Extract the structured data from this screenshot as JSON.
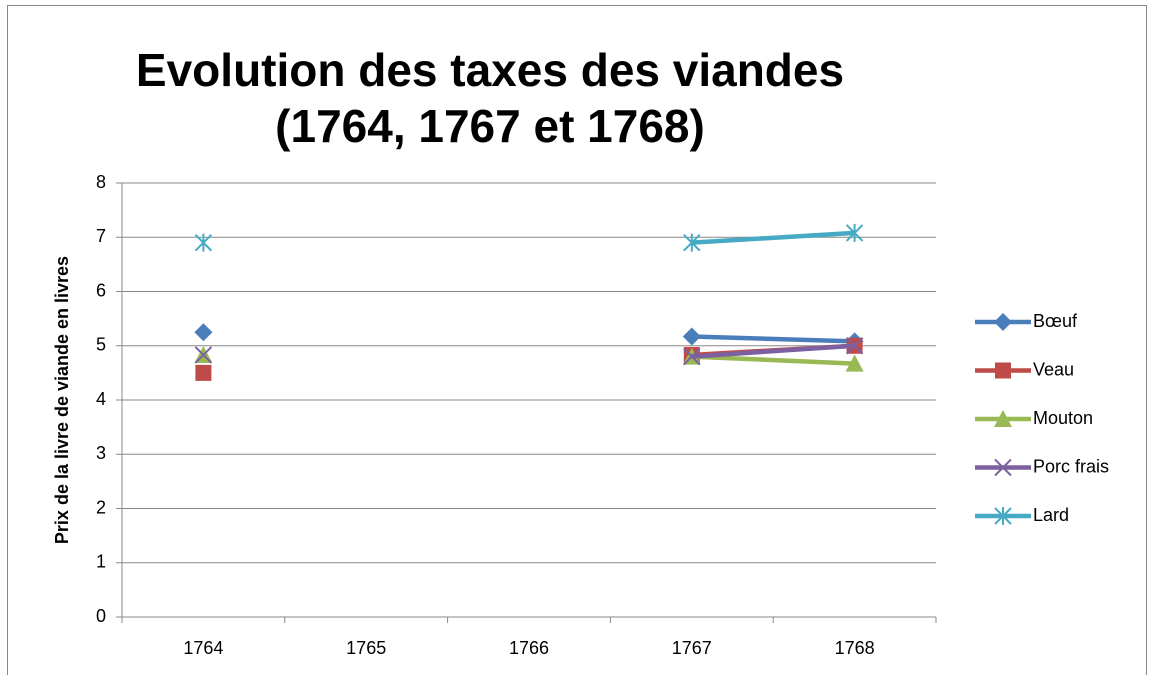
{
  "chart_data": {
    "type": "line",
    "title": "Evolution des taxes des viandes (1764, 1767 et 1768)",
    "y_label": "Prix de la livre de viande en livres",
    "categories": [
      "1764",
      "1765",
      "1766",
      "1767",
      "1768"
    ],
    "series": [
      {
        "name": "Bœuf",
        "color": "#4a7ebb",
        "marker": "diamond",
        "values": [
          5.25,
          null,
          null,
          5.17,
          5.08
        ]
      },
      {
        "name": "Veau",
        "color": "#be4b48",
        "marker": "square",
        "values": [
          4.5,
          null,
          null,
          4.83,
          5.0
        ]
      },
      {
        "name": "Mouton",
        "color": "#98b954",
        "marker": "triangle",
        "values": [
          4.83,
          null,
          null,
          4.8,
          4.67
        ]
      },
      {
        "name": "Porc frais",
        "color": "#7d60a0",
        "marker": "x",
        "values": [
          4.83,
          null,
          null,
          4.8,
          5.0
        ]
      },
      {
        "name": "Lard",
        "color": "#46aac5",
        "marker": "star",
        "values": [
          6.9,
          null,
          null,
          6.9,
          7.08
        ]
      }
    ],
    "ylim": [
      0,
      8
    ],
    "yticks": [
      0,
      1,
      2,
      3,
      4,
      5,
      6,
      7,
      8
    ],
    "grid": true,
    "legend": "right"
  }
}
